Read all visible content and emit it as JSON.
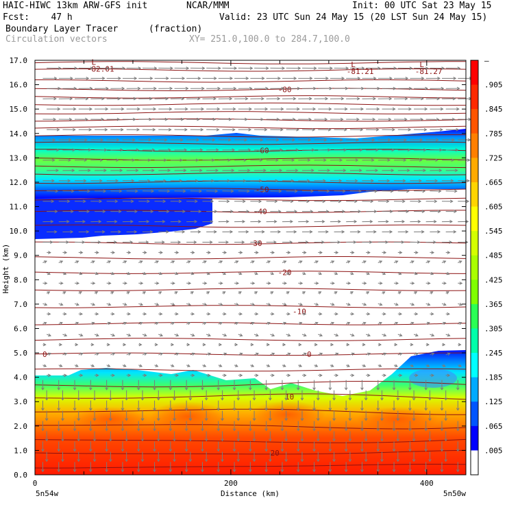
{
  "header": {
    "line1_left": "HAIC-HIWC 13km ARW-GFS init",
    "line1_mid": "NCAR/MMM",
    "line1_right": "Init: 00 UTC Sat 23 May 15",
    "line2_left": "Fcst:    47 h",
    "line2_right": "Valid: 23 UTC Sun 24 May 15 (20 LST Sun 24 May 15)",
    "field_name": "Boundary Layer Tracer",
    "field_units": "(fraction)",
    "vectors_label": "Circulation vectors",
    "xsect_label": "XY= 251.0,100.0 to 284.7,100.0"
  },
  "colors": {
    "contour_line": "#8b1010",
    "vector": "#7a7a7a",
    "axis": "#000000"
  },
  "chart_data": {
    "type": "heatmap",
    "ylabel": "Height (km)",
    "xlabel": "Distance (km)",
    "x_start_label": "5n54w",
    "x_end_label": "5n50w",
    "xlim": [
      0,
      440
    ],
    "ylim": [
      0,
      17
    ],
    "yticks": [
      "0.0",
      "1.0",
      "2.0",
      "3.0",
      "4.0",
      "5.0",
      "6.0",
      "7.0",
      "8.0",
      "9.0",
      "10.0",
      "11.0",
      "12.0",
      "13.0",
      "14.0",
      "15.0",
      "16.0",
      "17.0"
    ],
    "xticks": [
      {
        "value": 0,
        "label": "0"
      },
      {
        "value": 200,
        "label": "200"
      },
      {
        "value": 400,
        "label": "400"
      }
    ],
    "colorbar_labels": [
      "–",
      ".905",
      ".845",
      ".785",
      ".725",
      ".665",
      ".605",
      ".545",
      ".485",
      ".425",
      ".365",
      ".305",
      ".245",
      ".185",
      ".125",
      ".065",
      ".005"
    ],
    "colorbar_colors": [
      "#ff0000",
      "#ff2a00",
      "#ff5500",
      "#ff7f00",
      "#ffaa00",
      "#ffd400",
      "#ffff00",
      "#d4ff00",
      "#aaff00",
      "#7fff00",
      "#2aff55",
      "#00ffaa",
      "#00ffff",
      "#00aaff",
      "#0055ff",
      "#0000ff",
      "#ffffff"
    ],
    "contours": [
      {
        "label": "-80",
        "x": 255,
        "height": 15.8
      },
      {
        "label": "-60",
        "x": 232,
        "height": 13.3
      },
      {
        "label": "-50",
        "x": 232,
        "height": 11.7
      },
      {
        "label": "-40",
        "x": 230,
        "height": 10.8
      },
      {
        "label": "-30",
        "x": 225,
        "height": 9.5
      },
      {
        "label": "-20",
        "x": 255,
        "height": 8.3
      },
      {
        "label": "-10",
        "x": 270,
        "height": 6.7
      },
      {
        "label": "0",
        "x": 10,
        "height": 4.95
      },
      {
        "label": "0",
        "x": 280,
        "height": 4.95
      },
      {
        "label": "10",
        "x": 260,
        "height": 3.2
      },
      {
        "label": "20",
        "x": 245,
        "height": 0.9
      }
    ],
    "lows": [
      {
        "letter": "L",
        "value": "-82.01",
        "x": 60,
        "height": 16.9
      },
      {
        "letter": "L",
        "value": "-81.21",
        "x": 325,
        "height": 16.8
      },
      {
        "letter": "L",
        "value": "-81.27",
        "x": 395,
        "height": 16.8
      }
    ]
  }
}
